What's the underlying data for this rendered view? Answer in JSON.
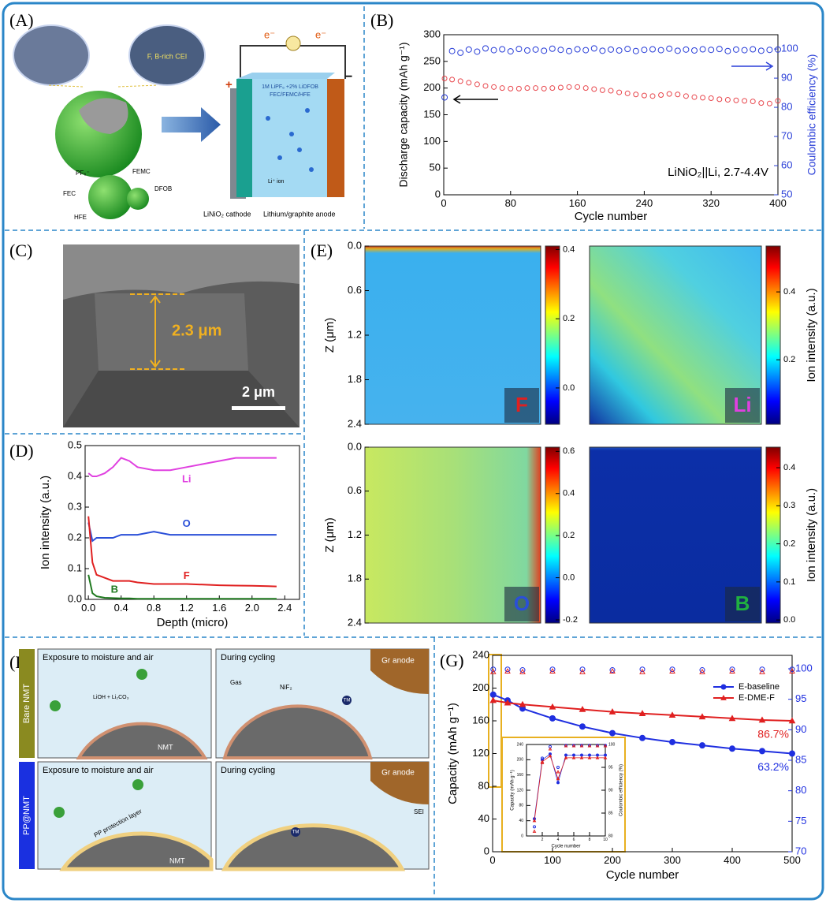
{
  "figure": {
    "panel_labels": [
      "(A)",
      "(B)",
      "(C)",
      "(D)",
      "(E)",
      "(F)",
      "(G)"
    ],
    "a": {
      "cei_label": "F, B-rich CEI",
      "electron_left": "e⁻",
      "electron_right": "e⁻",
      "plus": "+",
      "minus": "−",
      "electrolyte": "1M LiPF₆ +2% LiDFOB",
      "solvents": "FEC/FEMC/HFE",
      "li_ion": "Li⁺ ion",
      "cathode": "LiNiO₂ cathode",
      "anode": "Lithium/graphite anode",
      "molecules": [
        "PF₆⁻",
        "FEMC",
        "FEC",
        "DFOB",
        "HFE"
      ]
    },
    "c": {
      "thickness": "2.3 μm",
      "scale_bar": "2 μm"
    },
    "f": {
      "rows": [
        "Bare NMT",
        "PP@NMT"
      ],
      "exposure": [
        "Exposure to moisture and air",
        "Exposure to moisture and air"
      ],
      "cycling": [
        "During cycling",
        "During cycling"
      ],
      "anode": [
        "Gr anode",
        "Gr anode"
      ],
      "particle": [
        "NMT",
        "NMT"
      ],
      "gas": "Gas",
      "nif2": "NiF₂",
      "residue": "LiOH + Li₂CO₃",
      "layer": "PP protection layer",
      "sei": "SEI",
      "tm": [
        "TM",
        "TM"
      ]
    }
  },
  "chart_data": [
    {
      "type": "scatter",
      "annotation": "LiNiO₂||Li, 2.7-4.4V",
      "xlabel": "Cycle number",
      "ylabel": "Discharge capacity (mAh g⁻¹)",
      "y2label": "Coulombic efficiency (%)",
      "x": [
        1,
        10,
        20,
        30,
        40,
        50,
        60,
        70,
        80,
        90,
        100,
        110,
        120,
        130,
        140,
        150,
        160,
        170,
        180,
        190,
        200,
        210,
        220,
        230,
        240,
        250,
        260,
        270,
        280,
        290,
        300,
        310,
        320,
        330,
        340,
        350,
        360,
        370,
        380,
        390,
        400
      ],
      "capacity": [
        218,
        216,
        213,
        210,
        207,
        204,
        202,
        200,
        199,
        199,
        200,
        200,
        199,
        200,
        201,
        202,
        202,
        200,
        198,
        196,
        195,
        192,
        190,
        188,
        186,
        185,
        187,
        189,
        188,
        185,
        183,
        182,
        181,
        179,
        178,
        177,
        176,
        175,
        172,
        171,
        176
      ],
      "efficiency": [
        83.4,
        99.3,
        98.7,
        99.8,
        99.1,
        100.2,
        99.6,
        99.9,
        99.2,
        100.0,
        99.5,
        99.8,
        99.4,
        100.1,
        99.7,
        99.3,
        99.9,
        99.6,
        100.2,
        99.4,
        99.8,
        99.5,
        100.0,
        99.3,
        99.7,
        99.9,
        99.6,
        100.1,
        99.4,
        99.8,
        99.5,
        99.9,
        99.7,
        100.0,
        99.3,
        99.8,
        99.6,
        99.9,
        99.4,
        99.7,
        99.8
      ],
      "capacity_color": "#e8474d",
      "efficiency_color": "#2a3fd8",
      "xlim": [
        0,
        400
      ],
      "xticks": [
        0,
        80,
        160,
        240,
        320,
        400
      ],
      "ylim": [
        0,
        300
      ],
      "yticks": [
        0,
        50,
        100,
        150,
        200,
        250,
        300
      ],
      "y2lim": [
        50,
        104.9
      ],
      "y2ticks": [
        50,
        60,
        70,
        80,
        90,
        100
      ]
    },
    {
      "type": "line",
      "xlabel": "Depth (micro)",
      "ylabel": "Ion intensity (a.u.)",
      "x": [
        0.0,
        0.05,
        0.1,
        0.2,
        0.3,
        0.4,
        0.5,
        0.6,
        0.8,
        1.0,
        1.2,
        1.4,
        1.6,
        1.8,
        2.0,
        2.2,
        2.3
      ],
      "series": [
        {
          "name": "Li",
          "color": "#e040e0",
          "values": [
            0.41,
            0.4,
            0.4,
            0.41,
            0.43,
            0.46,
            0.45,
            0.43,
            0.42,
            0.42,
            0.43,
            0.44,
            0.45,
            0.46,
            0.46,
            0.46,
            0.46
          ]
        },
        {
          "name": "O",
          "color": "#2a4fd8",
          "values": [
            0.25,
            0.19,
            0.2,
            0.2,
            0.2,
            0.21,
            0.21,
            0.21,
            0.22,
            0.21,
            0.21,
            0.21,
            0.21,
            0.21,
            0.21,
            0.21,
            0.21
          ]
        },
        {
          "name": "F",
          "color": "#e02020",
          "values": [
            0.27,
            0.12,
            0.08,
            0.07,
            0.06,
            0.06,
            0.06,
            0.055,
            0.05,
            0.05,
            0.05,
            0.048,
            0.046,
            0.045,
            0.044,
            0.043,
            0.042
          ]
        },
        {
          "name": "B",
          "color": "#207a20",
          "values": [
            0.08,
            0.02,
            0.01,
            0.005,
            0.004,
            0.003,
            0.003,
            0.002,
            0.002,
            0.002,
            0.002,
            0.002,
            0.002,
            0.002,
            0.002,
            0.002,
            0.002
          ]
        }
      ],
      "xlim": [
        -0.04,
        2.58
      ],
      "xticks": [
        {
          "value": 0,
          "label": "0.0"
        },
        0.4,
        0.8,
        1.2,
        1.6,
        {
          "value": 2,
          "label": "2.0"
        },
        2.4
      ],
      "ylim": [
        0,
        0.5
      ],
      "yticks": [
        {
          "value": 0,
          "label": "0.0"
        },
        0.1,
        0.2,
        0.3,
        0.4,
        0.5
      ]
    },
    {
      "type": "heatmap",
      "label": "F",
      "label_color": "#e02020",
      "ylabel": "Z (μm)",
      "ylim": [
        0,
        2.4
      ],
      "yticks": [
        {
          "value": 0,
          "label": "0.0"
        },
        0.6,
        1.2,
        1.8,
        2.4
      ],
      "colorbar": {
        "lim": [
          -0.105,
          0.41
        ],
        "ticks": [
          {
            "value": 0,
            "label": "0.0"
          },
          0.2,
          0.4
        ]
      }
    },
    {
      "type": "heatmap",
      "label": "Li",
      "label_color": "#e040e0",
      "ylim": [
        0,
        2.4
      ],
      "colorbar_label": "Ion intensity (a.u.)",
      "colorbar": {
        "lim": [
          0.01,
          0.535
        ],
        "ticks": [
          0.2,
          0.4
        ]
      }
    },
    {
      "type": "heatmap",
      "label": "O",
      "label_color": "#2a4fd8",
      "ylabel": "Z (μm)",
      "ylim": [
        0,
        2.4
      ],
      "yticks": [
        {
          "value": 0,
          "label": "0.0"
        },
        0.6,
        1.2,
        1.8,
        2.4
      ],
      "colorbar": {
        "lim": [
          -0.215,
          0.62
        ],
        "ticks": [
          -0.2,
          {
            "value": 0,
            "label": "0.0"
          },
          0.2,
          0.4,
          0.6
        ]
      }
    },
    {
      "type": "heatmap",
      "label": "B",
      "label_color": "#20b040",
      "ylim": [
        0,
        2.4
      ],
      "colorbar_label": "Ion intensity (a.u.)",
      "colorbar": {
        "lim": [
          -0.008,
          0.454
        ],
        "ticks": [
          {
            "value": 0,
            "label": "0.0"
          },
          0.1,
          0.2,
          0.3,
          0.4
        ]
      }
    },
    {
      "type": "line",
      "xlabel": "Cycle number",
      "ylabel": "Capacity (mAh g⁻¹)",
      "legend": "upper right",
      "x": [
        1,
        25,
        50,
        100,
        150,
        200,
        250,
        300,
        350,
        400,
        450,
        500
      ],
      "series": [
        {
          "name": "E-baseline",
          "color": "#1f2fe0",
          "marker": "circle",
          "retention": "63.2%",
          "values": [
            192,
            185,
            175,
            163,
            153,
            145,
            139,
            134,
            130,
            126,
            123,
            120
          ],
          "ce": [
            99.9,
            99.9,
            99.8,
            99.9,
            99.9,
            99.8,
            99.9,
            99.9,
            99.8,
            99.9,
            99.9,
            99.9
          ]
        },
        {
          "name": "E-DME-F",
          "color": "#e02020",
          "marker": "triangle",
          "retention": "86.7%",
          "values": [
            185,
            182,
            180,
            177,
            174,
            171,
            169,
            167,
            165,
            163,
            161,
            160
          ],
          "ce": [
            99.5,
            99.6,
            99.5,
            99.6,
            99.5,
            99.6,
            99.5,
            99.6,
            99.5,
            99.6,
            99.5,
            99.6
          ]
        }
      ],
      "xlim": [
        0,
        500
      ],
      "xticks": [
        0,
        100,
        200,
        300,
        400,
        500
      ],
      "ylim": [
        0,
        240
      ],
      "yticks": [
        0,
        40,
        80,
        120,
        160,
        200,
        240
      ],
      "y2lim": [
        70,
        102.2
      ],
      "y2ticks": [
        70,
        75,
        80,
        85,
        90,
        95,
        100
      ]
    },
    {
      "type": "line",
      "xlabel": "Cycle number",
      "ylabel": "Capacity (mAh g⁻¹)",
      "y2label": "Coulombic efficiency (%)",
      "x": [
        1,
        2,
        3,
        4,
        5,
        6,
        7,
        8,
        9,
        10
      ],
      "series": [
        {
          "color": "#1f2fe0",
          "marker": "circle",
          "values": [
            45,
            200,
            215,
            140,
            212,
            212,
            212,
            212,
            212,
            212
          ],
          "ce": [
            82,
            97,
            99.5,
            95,
            99.8,
            99.8,
            99.8,
            99.8,
            99.8,
            99.8
          ]
        },
        {
          "color": "#e02020",
          "marker": "triangle",
          "values": [
            40,
            195,
            210,
            150,
            205,
            205,
            205,
            205,
            205,
            205
          ],
          "ce": [
            81,
            96,
            99,
            94,
            99.7,
            99.7,
            99.7,
            99.7,
            99.7,
            99.7
          ]
        }
      ],
      "xlim": [
        0,
        10
      ],
      "xticks": [
        2,
        4,
        6,
        8,
        10
      ],
      "ylim": [
        0,
        240
      ],
      "yticks": [
        0,
        40,
        80,
        120,
        160,
        200,
        240
      ],
      "y2lim": [
        80,
        100
      ],
      "y2ticks": [
        80,
        85,
        90,
        95,
        100
      ]
    }
  ]
}
